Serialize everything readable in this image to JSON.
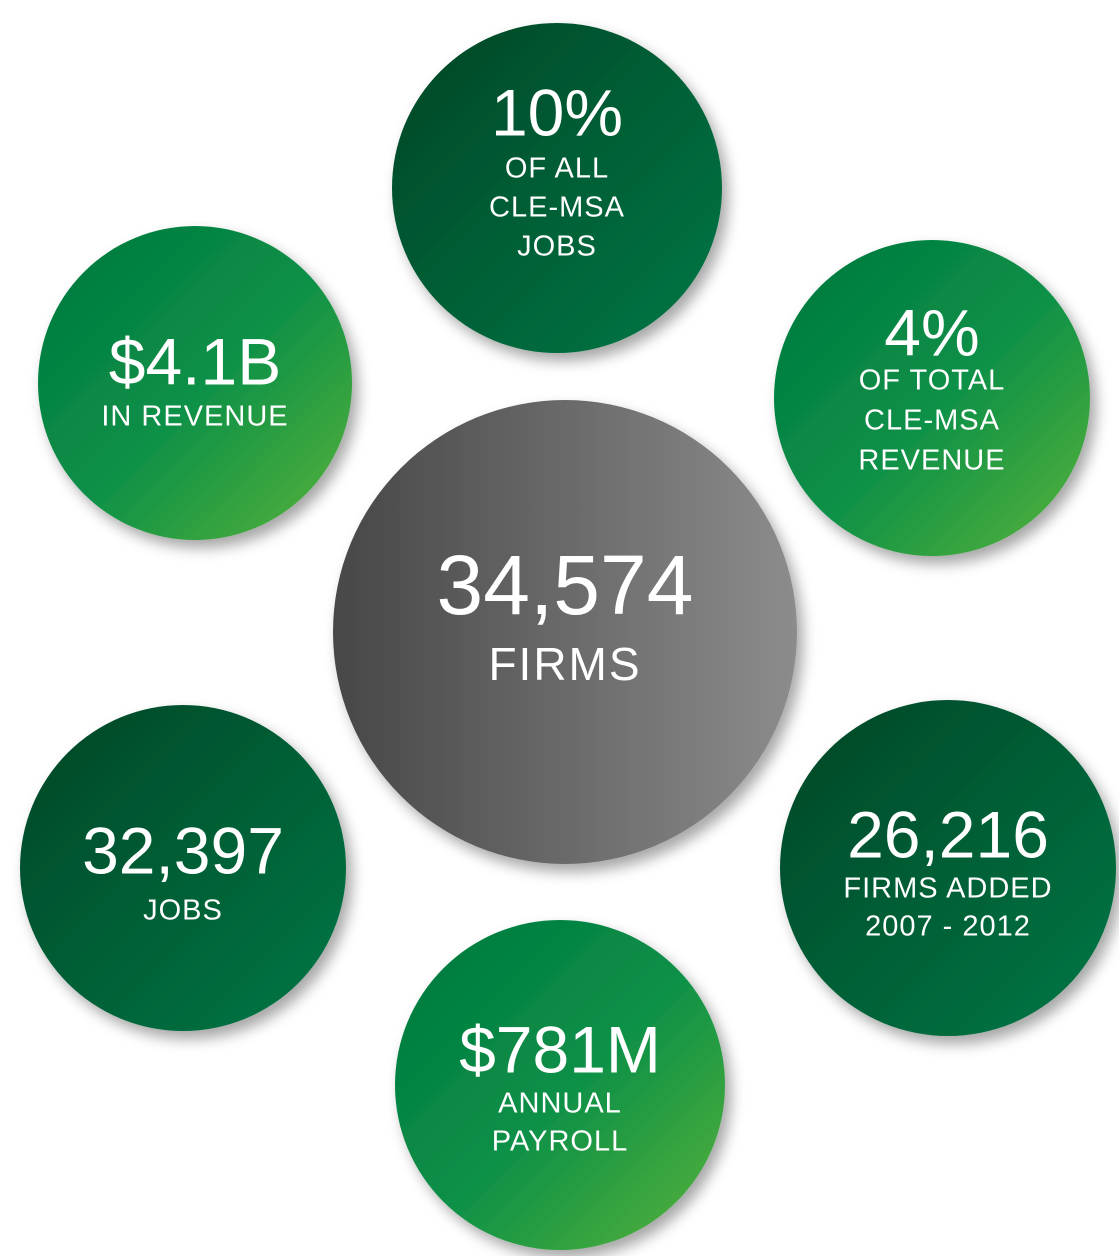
{
  "center": {
    "value": "34,574",
    "lines": [
      "FIRMS"
    ]
  },
  "stats": [
    {
      "value": "10%",
      "lines": [
        "OF ALL",
        "CLE-MSA",
        "JOBS"
      ]
    },
    {
      "value": "$4.1B",
      "lines": [
        "IN REVENUE"
      ]
    },
    {
      "value": "4%",
      "lines": [
        "OF TOTAL",
        "CLE-MSA",
        "REVENUE"
      ]
    },
    {
      "value": "32,397",
      "lines": [
        "JOBS"
      ]
    },
    {
      "value": "26,216",
      "lines": [
        "FIRMS ADDED",
        "2007 - 2012"
      ]
    },
    {
      "value": "$781M",
      "lines": [
        "ANNUAL",
        "PAYROLL"
      ]
    }
  ]
}
